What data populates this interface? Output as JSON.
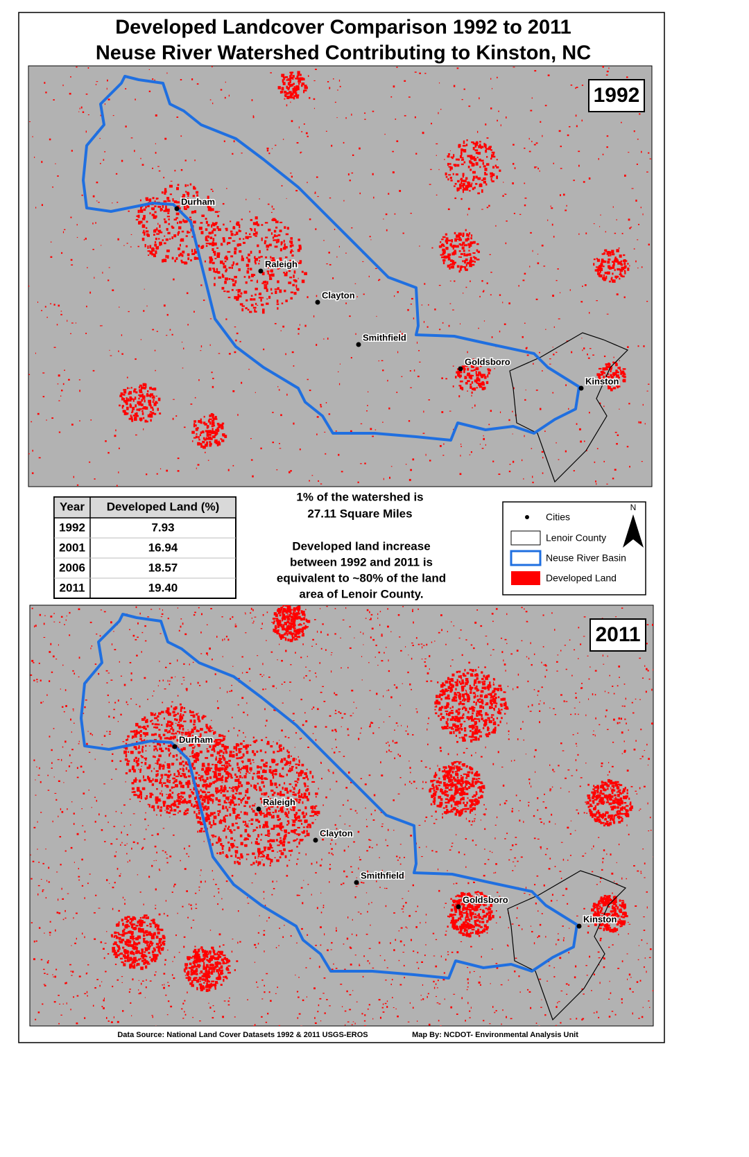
{
  "title": [
    "Developed Landcover Comparison 1992 to 2011",
    "Neuse River Watershed Contributing to Kinston, NC"
  ],
  "maps": [
    {
      "year": "1992",
      "cities": [
        "Durham",
        "Raleigh",
        "Clayton",
        "Smithfield",
        "Goldsboro",
        "Kinston"
      ]
    },
    {
      "year": "2011",
      "cities": [
        "Durham",
        "Raleigh",
        "Clayton",
        "Smithfield",
        "Goldsboro",
        "Kinston"
      ]
    }
  ],
  "table": {
    "headers": [
      "Year",
      "Developed Land (%)"
    ],
    "rows": [
      [
        "1992",
        "7.93"
      ],
      [
        "2001",
        "16.94"
      ],
      [
        "2006",
        "18.57"
      ],
      [
        "2011",
        "19.40"
      ]
    ]
  },
  "notes": [
    "1% of the watershed is",
    "27.11 Square Miles",
    "Developed land increase",
    "between 1992 and 2011 is",
    "equivalent to ~80% of the land",
    "area of Lenoir County."
  ],
  "legend": {
    "items": [
      "Cities",
      "Lenoir County",
      "Neuse River Basin",
      "Developed Land"
    ],
    "north": "N"
  },
  "footer": [
    "Data Source: National Land Cover Datasets 1992 & 2011 USGS-EROS",
    "Map By: NCDOT- Environmental Analysis Unit"
  ]
}
